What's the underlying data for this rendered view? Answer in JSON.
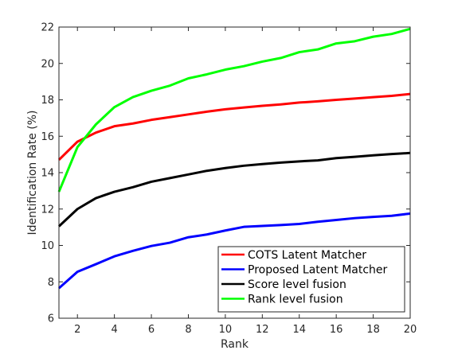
{
  "chart_data": {
    "type": "line",
    "title": "",
    "xlabel": "Rank",
    "ylabel": "Identification Rate (%)",
    "xlim": [
      1,
      20
    ],
    "ylim": [
      6,
      22
    ],
    "xticks": [
      2,
      4,
      6,
      8,
      10,
      12,
      14,
      16,
      18,
      20
    ],
    "yticks": [
      6,
      8,
      10,
      12,
      14,
      16,
      18,
      20,
      22
    ],
    "grid": false,
    "legend_position": "bottom-right",
    "x": [
      1,
      2,
      3,
      4,
      5,
      6,
      7,
      8,
      9,
      10,
      11,
      12,
      13,
      14,
      15,
      16,
      17,
      18,
      19,
      20
    ],
    "series": [
      {
        "name": "COTS Latent Matcher",
        "color": "#ff0000",
        "values": [
          14.7,
          15.7,
          16.2,
          16.55,
          16.7,
          16.9,
          17.05,
          17.2,
          17.35,
          17.48,
          17.58,
          17.67,
          17.75,
          17.85,
          17.92,
          18.0,
          18.07,
          18.15,
          18.22,
          18.32
        ]
      },
      {
        "name": "Proposed Latent Matcher",
        "color": "#0000ff",
        "values": [
          7.65,
          8.55,
          8.97,
          9.4,
          9.7,
          9.97,
          10.15,
          10.45,
          10.6,
          10.82,
          11.02,
          11.07,
          11.12,
          11.18,
          11.3,
          11.4,
          11.5,
          11.57,
          11.63,
          11.75
        ]
      },
      {
        "name": "Score level fusion",
        "color": "#000000",
        "values": [
          11.05,
          12.0,
          12.6,
          12.95,
          13.2,
          13.5,
          13.7,
          13.9,
          14.1,
          14.25,
          14.38,
          14.47,
          14.55,
          14.62,
          14.67,
          14.8,
          14.87,
          14.95,
          15.02,
          15.08
        ]
      },
      {
        "name": "Rank level fusion",
        "color": "#00ff00",
        "values": [
          12.95,
          15.4,
          16.65,
          17.6,
          18.15,
          18.5,
          18.78,
          19.18,
          19.4,
          19.66,
          19.85,
          20.1,
          20.3,
          20.62,
          20.77,
          21.1,
          21.22,
          21.47,
          21.62,
          21.9
        ]
      }
    ]
  }
}
